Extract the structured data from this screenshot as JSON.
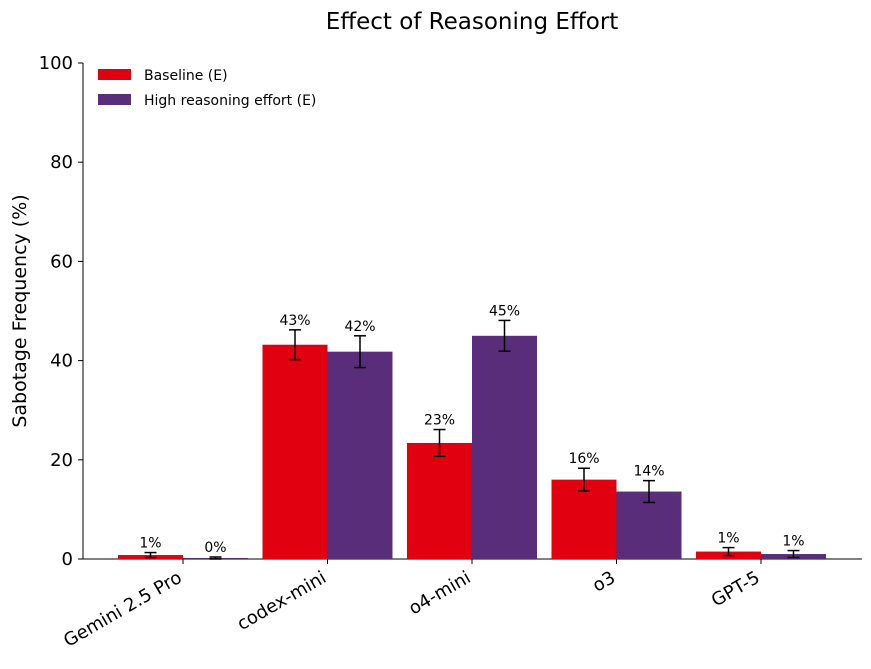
{
  "chart_data": {
    "type": "bar",
    "title": "Effect of Reasoning Effort",
    "xlabel": "",
    "ylabel": "Sabotage Frequency (%)",
    "ylim": [
      0,
      100
    ],
    "yticks": [
      0,
      20,
      40,
      60,
      80,
      100
    ],
    "categories": [
      "Gemini 2.5 Pro",
      "codex-mini",
      "o4-mini",
      "o3",
      "GPT-5"
    ],
    "series": [
      {
        "name": "Baseline (E)",
        "color": "#e0000f",
        "values": [
          0.8,
          43.2,
          23.4,
          16.0,
          1.5
        ],
        "errors": [
          0.5,
          3.0,
          2.7,
          2.3,
          0.8
        ],
        "labels": [
          "1%",
          "43%",
          "23%",
          "16%",
          "1%"
        ]
      },
      {
        "name": "High reasoning effort (E)",
        "color": "#5a2d7a",
        "values": [
          0.2,
          41.8,
          45.0,
          13.6,
          1.0
        ],
        "errors": [
          0.2,
          3.2,
          3.1,
          2.2,
          0.7
        ],
        "labels": [
          "0%",
          "42%",
          "45%",
          "14%",
          "1%"
        ]
      }
    ],
    "legend_position": "top-left",
    "grid": false
  }
}
